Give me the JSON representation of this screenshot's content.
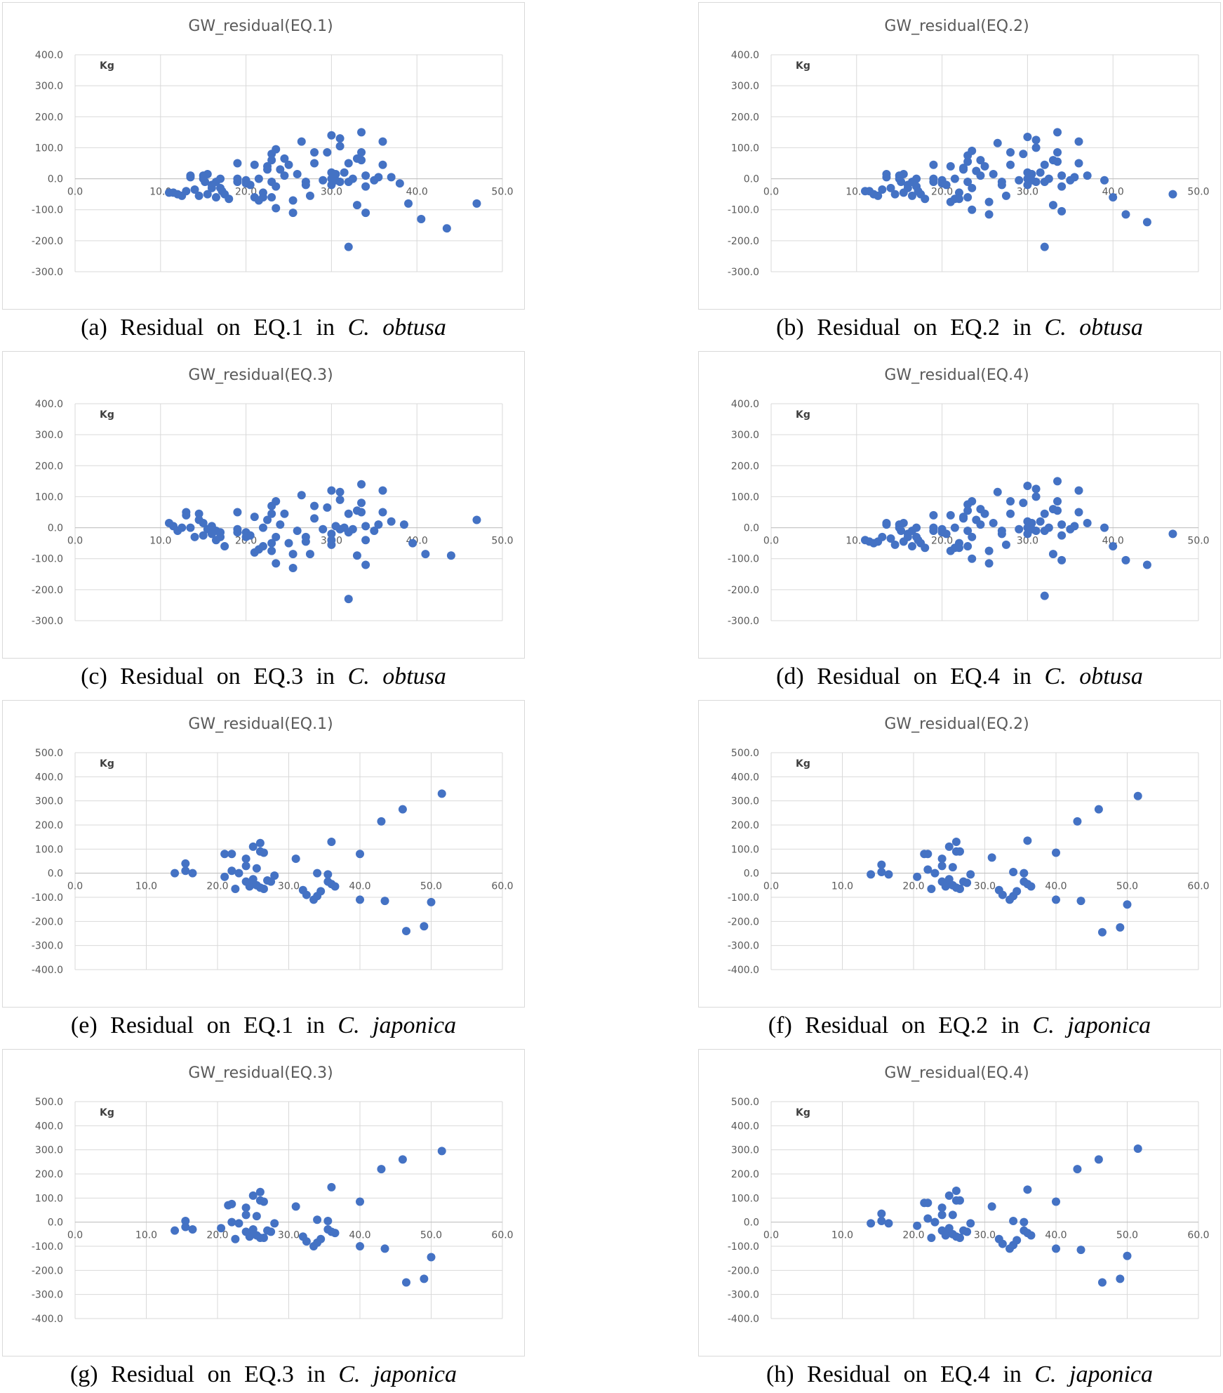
{
  "colors": {
    "marker": "#4472c4",
    "grid": "#d9d9d9",
    "text": "#595959"
  },
  "chart_data": [
    {
      "id": "a",
      "type": "scatter",
      "title": "GW_residual(EQ.1)",
      "unit_label": "Kg",
      "xlim": [
        0,
        50
      ],
      "ylim": [
        -300,
        400
      ],
      "xticks": [
        "0.0",
        "10.0",
        "20.0",
        "30.0",
        "40.0",
        "50.0"
      ],
      "yticks": [
        "400.0",
        "300.0",
        "200.0",
        "100.0",
        "0.0",
        "-100.0",
        "-200.0",
        "-300.0"
      ],
      "grid": true,
      "x": [],
      "y": [],
      "caption": {
        "prefix": "(a) Residual on EQ.1 in",
        "species": "C. obtusa"
      }
    },
    {
      "id": "b",
      "type": "scatter",
      "title": "GW_residual(EQ.2)",
      "unit_label": "Kg",
      "xlim": [
        0,
        50
      ],
      "ylim": [
        -300,
        400
      ],
      "xticks": [
        "0.0",
        "10.0",
        "20.0",
        "30.0",
        "40.0",
        "50.0"
      ],
      "yticks": [
        "400.0",
        "300.0",
        "200.0",
        "100.0",
        "0.0",
        "-100.0",
        "-200.0",
        "-300.0"
      ],
      "grid": true,
      "x": [],
      "y": [],
      "caption": {
        "prefix": "(b) Residual on EQ.2 in",
        "species": "C. obtusa"
      }
    },
    {
      "id": "c",
      "type": "scatter",
      "title": "GW_residual(EQ.3)",
      "unit_label": "Kg",
      "xlim": [
        0,
        50
      ],
      "ylim": [
        -300,
        400
      ],
      "xticks": [
        "0.0",
        "10.0",
        "20.0",
        "30.0",
        "40.0",
        "50.0"
      ],
      "yticks": [
        "400.0",
        "300.0",
        "200.0",
        "100.0",
        "0.0",
        "-100.0",
        "-200.0",
        "-300.0"
      ],
      "grid": true,
      "x": [],
      "y": [],
      "caption": {
        "prefix": "(c) Residual on EQ.3 in",
        "species": "C. obtusa"
      }
    },
    {
      "id": "d",
      "type": "scatter",
      "title": "GW_residual(EQ.4)",
      "unit_label": "Kg",
      "xlim": [
        0,
        50
      ],
      "ylim": [
        -300,
        400
      ],
      "xticks": [
        "0.0",
        "10.0",
        "20.0",
        "30.0",
        "40.0",
        "50.0"
      ],
      "yticks": [
        "400.0",
        "300.0",
        "200.0",
        "100.0",
        "0.0",
        "-100.0",
        "-200.0",
        "-300.0"
      ],
      "grid": true,
      "x": [],
      "y": [],
      "caption": {
        "prefix": "(d) Residual on EQ.4 in",
        "species": "C. obtusa"
      }
    },
    {
      "id": "e",
      "type": "scatter",
      "title": "GW_residual(EQ.1)",
      "unit_label": "Kg",
      "xlim": [
        0,
        60
      ],
      "ylim": [
        -400,
        500
      ],
      "xticks": [
        "0.0",
        "10.0",
        "20.0",
        "30.0",
        "40.0",
        "50.0",
        "60.0"
      ],
      "yticks": [
        "500.0",
        "400.0",
        "300.0",
        "200.0",
        "100.0",
        "0.0",
        "-100.0",
        "-200.0",
        "-300.0",
        "-400.0"
      ],
      "grid": true,
      "x": [],
      "y": [],
      "caption": {
        "prefix": "(e) Residual on EQ.1 in",
        "species": "C. japonica"
      }
    },
    {
      "id": "f",
      "type": "scatter",
      "title": "GW_residual(EQ.2)",
      "unit_label": "Kg",
      "xlim": [
        0,
        60
      ],
      "ylim": [
        -400,
        500
      ],
      "xticks": [
        "0.0",
        "10.0",
        "20.0",
        "30.0",
        "40.0",
        "50.0",
        "60.0"
      ],
      "yticks": [
        "500.0",
        "400.0",
        "300.0",
        "200.0",
        "100.0",
        "0.0",
        "-100.0",
        "-200.0",
        "-300.0",
        "-400.0"
      ],
      "grid": true,
      "x": [],
      "y": [],
      "caption": {
        "prefix": "(f) Residual on EQ.2 in",
        "species": "C. japonica"
      }
    },
    {
      "id": "g",
      "type": "scatter",
      "title": "GW_residual(EQ.3)",
      "unit_label": "Kg",
      "xlim": [
        0,
        60
      ],
      "ylim": [
        -400,
        500
      ],
      "xticks": [
        "0.0",
        "10.0",
        "20.0",
        "30.0",
        "40.0",
        "50.0",
        "60.0"
      ],
      "yticks": [
        "500.0",
        "400.0",
        "300.0",
        "200.0",
        "100.0",
        "0.0",
        "-100.0",
        "-200.0",
        "-300.0",
        "-400.0"
      ],
      "grid": true,
      "x": [],
      "y": [],
      "caption": {
        "prefix": "(g) Residual on EQ.3 in",
        "species": "C. japonica"
      }
    },
    {
      "id": "h",
      "type": "scatter",
      "title": "GW_residual(EQ.4)",
      "unit_label": "Kg",
      "xlim": [
        0,
        60
      ],
      "ylim": [
        -400,
        500
      ],
      "xticks": [
        "0.0",
        "10.0",
        "20.0",
        "30.0",
        "40.0",
        "50.0",
        "60.0"
      ],
      "yticks": [
        "500.0",
        "400.0",
        "300.0",
        "200.0",
        "100.0",
        "0.0",
        "-100.0",
        "-200.0",
        "-300.0",
        "-400.0"
      ],
      "grid": true,
      "x": [],
      "y": [],
      "caption": {
        "prefix": "(h) Residual on EQ.4 in",
        "species": "C. japonica"
      }
    }
  ]
}
